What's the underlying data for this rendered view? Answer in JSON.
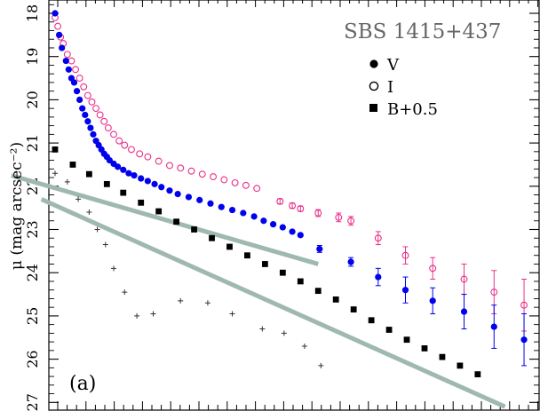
{
  "chart_data": {
    "type": "scatter",
    "title": "SBS 1415+437",
    "panel_label": "(a)",
    "ylabel": "μ (mag arcsec⁻²)",
    "xlabel": "",
    "ylim": [
      27.1,
      17.8
    ],
    "y_inverted": true,
    "y_tick_labels": [
      "18",
      "19",
      "20",
      "21",
      "22",
      "23",
      "24",
      "25",
      "26",
      "27"
    ],
    "legend": [
      {
        "marker": "filled-circle",
        "label": "V"
      },
      {
        "marker": "open-circle",
        "label": "I"
      },
      {
        "marker": "filled-square",
        "label": "B+0.5"
      }
    ],
    "legend_placement": "top-right",
    "colors": {
      "V": "#0000ee",
      "I": "#e8308a",
      "B": "#000000",
      "cross": "#333333",
      "fit": "#9fb8b0",
      "axis": "#000000"
    },
    "series": [
      {
        "name": "V",
        "marker": "filled-circle",
        "x": [
          0.0,
          0.3,
          0.5,
          0.8,
          1.0,
          1.2,
          1.4,
          1.6,
          1.8,
          2.0,
          2.2,
          2.4,
          2.6,
          2.8,
          3.0,
          3.2,
          3.4,
          3.6,
          3.8,
          4.0,
          4.3,
          4.6,
          5.0,
          5.4,
          5.8,
          6.3,
          6.8,
          7.3,
          7.8,
          8.4,
          9.0,
          9.8,
          10.6,
          11.4,
          12.2,
          13.0,
          13.8,
          14.6,
          15.3,
          16.0,
          16.7,
          17.4,
          18.0,
          19.4,
          21.7,
          23.7,
          25.7,
          27.7,
          30.0,
          32.2,
          34.4
        ],
        "y": [
          18.0,
          18.5,
          18.8,
          19.1,
          19.3,
          19.5,
          19.6,
          19.8,
          20.0,
          20.2,
          20.35,
          20.5,
          20.65,
          20.8,
          20.95,
          21.05,
          21.15,
          21.25,
          21.32,
          21.4,
          21.48,
          21.55,
          21.62,
          21.7,
          21.75,
          21.82,
          21.88,
          21.95,
          22.02,
          22.1,
          22.18,
          22.25,
          22.32,
          22.4,
          22.48,
          22.55,
          22.62,
          22.7,
          22.8,
          22.88,
          22.95,
          23.05,
          23.13,
          23.45,
          23.75,
          24.1,
          24.4,
          24.65,
          24.9,
          25.25,
          25.55
        ],
        "errors": [
          0.01,
          0.01,
          0.01,
          0.01,
          0.01,
          0.01,
          0.01,
          0.01,
          0.01,
          0.01,
          0.01,
          0.01,
          0.01,
          0.01,
          0.01,
          0.01,
          0.01,
          0.01,
          0.01,
          0.01,
          0.01,
          0.01,
          0.01,
          0.01,
          0.01,
          0.01,
          0.01,
          0.01,
          0.01,
          0.01,
          0.01,
          0.01,
          0.01,
          0.01,
          0.01,
          0.01,
          0.01,
          0.01,
          0.01,
          0.01,
          0.01,
          0.01,
          0.01,
          0.08,
          0.1,
          0.2,
          0.3,
          0.3,
          0.4,
          0.5,
          0.6
        ]
      },
      {
        "name": "I",
        "marker": "open-circle",
        "x": [
          0.0,
          0.2,
          0.4,
          0.6,
          0.9,
          1.2,
          1.5,
          1.8,
          2.1,
          2.4,
          2.7,
          3.0,
          3.3,
          3.6,
          3.9,
          4.3,
          4.7,
          5.1,
          5.6,
          6.2,
          6.8,
          7.6,
          8.4,
          9.2,
          10.0,
          10.8,
          11.6,
          12.4,
          13.2,
          14.0,
          14.8,
          16.5,
          17.4,
          18.0,
          19.3,
          20.8,
          21.7,
          23.7,
          25.7,
          27.7,
          30.0,
          32.2,
          34.4
        ],
        "y": [
          18.1,
          18.3,
          18.55,
          18.7,
          18.95,
          19.1,
          19.3,
          19.5,
          19.7,
          19.9,
          20.05,
          20.2,
          20.35,
          20.5,
          20.65,
          20.8,
          20.95,
          21.05,
          21.15,
          21.25,
          21.32,
          21.42,
          21.52,
          21.58,
          21.65,
          21.72,
          21.78,
          21.85,
          21.92,
          21.98,
          22.05,
          22.35,
          22.45,
          22.52,
          22.62,
          22.72,
          22.8,
          23.2,
          23.6,
          23.9,
          24.15,
          24.45,
          24.75
        ],
        "errors": [
          0.01,
          0.01,
          0.01,
          0.01,
          0.01,
          0.01,
          0.01,
          0.01,
          0.01,
          0.01,
          0.01,
          0.01,
          0.01,
          0.01,
          0.01,
          0.01,
          0.01,
          0.01,
          0.01,
          0.01,
          0.01,
          0.01,
          0.01,
          0.01,
          0.01,
          0.01,
          0.01,
          0.01,
          0.01,
          0.01,
          0.01,
          0.06,
          0.06,
          0.06,
          0.08,
          0.1,
          0.1,
          0.15,
          0.2,
          0.25,
          0.35,
          0.5,
          0.6
        ]
      },
      {
        "name": "B+0.5",
        "marker": "filled-square",
        "x": [
          0.0,
          1.3,
          2.5,
          3.8,
          5.0,
          6.3,
          7.6,
          8.9,
          10.2,
          11.5,
          12.8,
          14.1,
          15.4,
          16.7,
          18.0,
          19.3,
          20.6,
          21.9,
          23.2,
          24.5,
          25.8,
          27.1,
          28.4,
          29.7,
          31.0
        ],
        "y": [
          21.15,
          21.5,
          21.72,
          21.95,
          22.15,
          22.38,
          22.58,
          22.82,
          23.0,
          23.2,
          23.4,
          23.6,
          23.8,
          24.0,
          24.2,
          24.42,
          24.62,
          24.85,
          25.1,
          25.32,
          25.55,
          25.75,
          25.95,
          26.15,
          26.35
        ]
      },
      {
        "name": "",
        "marker": "plus",
        "x": [
          0.0,
          0.9,
          1.7,
          2.5,
          3.1,
          3.7,
          4.3,
          5.1,
          6.0,
          7.2,
          9.2,
          11.2,
          13.0,
          15.2,
          16.8,
          18.3,
          19.5
        ],
        "y": [
          21.7,
          21.9,
          22.3,
          22.6,
          23.0,
          23.35,
          23.9,
          24.45,
          25.0,
          24.95,
          24.65,
          24.7,
          24.95,
          25.3,
          25.4,
          25.7,
          26.15
        ]
      }
    ],
    "fit_lines": [
      {
        "x": [
          -3.2,
          19.3
        ],
        "y": [
          21.75,
          23.8
        ]
      },
      {
        "x": [
          -1.0,
          33.0
        ],
        "y": [
          22.3,
          27.1
        ]
      }
    ]
  }
}
